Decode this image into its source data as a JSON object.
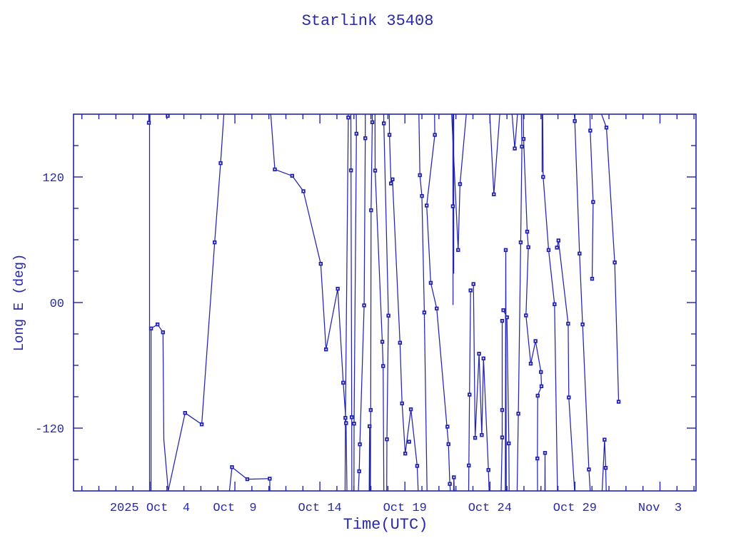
{
  "title": "Starlink 35408",
  "colors": {
    "plot": "#2323b0",
    "text": "#2828a8",
    "background": "#ffffff"
  },
  "chart_data": {
    "type": "line",
    "title": "Starlink 35408",
    "xlabel": "Time(UTC)",
    "ylabel": "Long E (deg)",
    "x_unit": "day of October 2025 (day 34 = Nov 3)",
    "xlim": [
      -0.49,
      36.12
    ],
    "ylim": [
      -180,
      180
    ],
    "grid": false,
    "legend": null,
    "x_major_ticks": [
      {
        "day": 4,
        "label": "2025 Oct  4"
      },
      {
        "day": 9,
        "label": "Oct  9"
      },
      {
        "day": 14,
        "label": "Oct 14"
      },
      {
        "day": 19,
        "label": "Oct 19"
      },
      {
        "day": 24,
        "label": "Oct 24"
      },
      {
        "day": 29,
        "label": "Oct 29"
      },
      {
        "day": 34,
        "label": "Nov  3"
      }
    ],
    "x_minor_ticks": {
      "start": 0,
      "end": 36,
      "step": 1
    },
    "y_major_ticks": [
      {
        "value": 120,
        "label": "120"
      },
      {
        "value": 0,
        "label": "00"
      },
      {
        "value": -120,
        "label": "-120"
      }
    ],
    "y_minor_step": 30,
    "lines": [
      [
        [
          3.94,
          180
        ],
        [
          3.94,
          171.8
        ]
      ],
      [
        [
          3.98,
          180
        ],
        [
          3.98,
          -180
        ]
      ],
      [
        [
          4.07,
          -180
        ],
        [
          4.07,
          -24.8
        ],
        [
          4.45,
          -20.9
        ],
        [
          4.77,
          -28.4
        ],
        [
          4.82,
          -131
        ],
        [
          5.08,
          -180
        ],
        [
          6.07,
          -105.5
        ],
        [
          7.05,
          -116.4
        ],
        [
          7.81,
          57.5
        ],
        [
          8.16,
          133.2
        ],
        [
          8.35,
          180
        ]
      ],
      [
        [
          8.68,
          -180
        ],
        [
          8.83,
          -157.3
        ],
        [
          9.73,
          -168.8
        ],
        [
          11.05,
          -168.3
        ],
        [
          11.06,
          -180
        ]
      ],
      [
        [
          11.11,
          180
        ],
        [
          11.35,
          127.2
        ],
        [
          12.37,
          121.1
        ],
        [
          13.03,
          106.4
        ],
        [
          14.05,
          37
        ],
        [
          14.36,
          -44.8
        ],
        [
          15.05,
          13.2
        ],
        [
          15.37,
          -76.6
        ],
        [
          15.54,
          -115.2
        ],
        [
          15.59,
          -180
        ]
      ],
      [
        [
          15.66,
          180
        ],
        [
          15.67,
          176.8
        ],
        [
          15.5,
          -110.2
        ],
        [
          15.48,
          -180
        ]
      ],
      [
        [
          15.82,
          180
        ],
        [
          15.83,
          126.3
        ],
        [
          15.87,
          -109.6
        ],
        [
          15.88,
          -180
        ]
      ],
      [
        [
          16.14,
          180
        ],
        [
          16.15,
          161.3
        ],
        [
          16.01,
          -115.7
        ],
        [
          16.0,
          -180
        ]
      ],
      [
        [
          16.67,
          180
        ],
        [
          16.67,
          157
        ],
        [
          16.6,
          -2.7
        ],
        [
          16.35,
          -135.5
        ],
        [
          16.31,
          -161.2
        ],
        [
          16.26,
          -180
        ]
      ],
      [
        [
          16.9,
          -180
        ],
        [
          16.92,
          -118.2
        ],
        [
          16.94,
          -180
        ]
      ],
      [
        [
          17.08,
          180
        ],
        [
          17.08,
          172.3
        ],
        [
          17.01,
          88.2
        ],
        [
          16.99,
          -102.7
        ],
        [
          16.97,
          -180
        ]
      ],
      [
        [
          17.24,
          180
        ],
        [
          17.25,
          126.1
        ],
        [
          17.67,
          -37.5
        ],
        [
          17.72,
          -60.7
        ],
        [
          17.76,
          -180
        ]
      ],
      [
        [
          17.75,
          180
        ],
        [
          17.76,
          171.2
        ],
        [
          18.03,
          -12.5
        ],
        [
          17.94,
          -130.7
        ],
        [
          17.93,
          -180
        ]
      ],
      [
        [
          18.08,
          180
        ],
        [
          18.09,
          160.2
        ],
        [
          18.18,
          113.8
        ],
        [
          18.27,
          117.7
        ],
        [
          18.71,
          -38.4
        ],
        [
          18.83,
          -96.4
        ],
        [
          19.02,
          -144.3
        ],
        [
          19.35,
          -102
        ],
        [
          19.72,
          -156.1
        ],
        [
          19.78,
          -180
        ]
      ],
      [
        [
          19.82,
          180
        ],
        [
          19.88,
          121.7
        ],
        [
          20,
          101.8
        ],
        [
          20.14,
          -9.5
        ],
        [
          20.3,
          -180
        ]
      ],
      [
        [
          20.74,
          180
        ],
        [
          20.76,
          160.2
        ],
        [
          20.28,
          92.7
        ],
        [
          20.52,
          18.8
        ],
        [
          20.87,
          -5.7
        ],
        [
          21.56,
          -135.3
        ],
        [
          21.64,
          -173.3
        ],
        [
          21.67,
          -180
        ]
      ],
      [
        [
          21.86,
          -180
        ],
        [
          21.88,
          -167
        ],
        [
          21.9,
          -180
        ]
      ],
      [
        [
          21.82,
          180
        ],
        [
          21.83,
          -2
        ]
      ],
      [
        [
          21.87,
          180
        ],
        [
          21.87,
          28
        ]
      ],
      [
        [
          21.75,
          180
        ],
        [
          22.13,
          50.2
        ],
        [
          22.24,
          113.2
        ],
        [
          22.61,
          180
        ]
      ],
      [
        [
          22.86,
          11.6
        ],
        [
          22.8,
          -88
        ],
        [
          22.76,
          -155.7
        ],
        [
          22.75,
          -180
        ]
      ],
      [
        [
          23.03,
          17.7
        ],
        [
          23.13,
          -129.3
        ],
        [
          23.36,
          -48.9
        ],
        [
          23.52,
          -126.6
        ],
        [
          23.62,
          -53.4
        ],
        [
          23.91,
          -160
        ],
        [
          23.95,
          -180
        ]
      ],
      [
        [
          23.99,
          180
        ],
        [
          24.23,
          103.4
        ],
        [
          24.58,
          180
        ]
      ],
      [
        [
          24.72,
          -17.5
        ],
        [
          24.72,
          -102.7
        ],
        [
          24.72,
          -128.9
        ],
        [
          24.66,
          -180
        ]
      ],
      [
        [
          24.9,
          -180
        ],
        [
          24.93,
          50.2
        ],
        [
          24.96,
          -180
        ]
      ],
      [
        [
          24.79,
          -7.3
        ],
        [
          25,
          -14.1
        ],
        [
          25.11,
          -134.6
        ],
        [
          25.13,
          -180
        ]
      ],
      [
        [
          25.3,
          180
        ],
        [
          25.46,
          147.2
        ],
        [
          25.62,
          180
        ]
      ],
      [
        [
          25.85,
          180
        ],
        [
          25.88,
          149
        ],
        [
          25.81,
          57.5
        ],
        [
          25.67,
          -106.2
        ],
        [
          25.6,
          -180
        ]
      ],
      [
        [
          25.96,
          180
        ],
        [
          25.98,
          156.3
        ],
        [
          26.19,
          67.7
        ],
        [
          26.26,
          52.9
        ],
        [
          26.12,
          -12.3
        ],
        [
          26.4,
          -58.4
        ],
        [
          26.68,
          -36.8
        ],
        [
          27,
          -66.4
        ],
        [
          27.03,
          -80
        ],
        [
          26.81,
          -89
        ],
        [
          26.79,
          -149
        ],
        [
          26.8,
          -180
        ]
      ],
      [
        [
          27.23,
          -180
        ],
        [
          27.24,
          -143.7
        ],
        [
          27.25,
          -180
        ]
      ],
      [
        [
          27.1,
          180
        ],
        [
          27.13,
          120
        ],
        [
          27.45,
          50.2
        ],
        [
          27.8,
          -1.6
        ],
        [
          27.97,
          -180
        ]
      ],
      [
        [
          27.07,
          180
        ],
        [
          27.07,
          125
        ]
      ],
      [
        [
          27.94,
          52.5
        ],
        [
          28.03,
          59.3
        ],
        [
          28.6,
          -20.2
        ],
        [
          28.64,
          -90.7
        ],
        [
          28.98,
          -180
        ]
      ],
      [
        [
          28.96,
          180
        ],
        [
          28.99,
          173.4
        ],
        [
          29.27,
          46.8
        ],
        [
          29.45,
          -20.9
        ],
        [
          29.82,
          -159.5
        ],
        [
          29.9,
          -180
        ]
      ],
      [
        [
          29.88,
          180
        ],
        [
          29.9,
          164.3
        ],
        [
          30.07,
          96.1
        ],
        [
          30.01,
          22.7
        ]
      ],
      [
        [
          30.56,
          180
        ],
        [
          30.85,
          167.2
        ],
        [
          31.34,
          38.3
        ],
        [
          31.57,
          -94.8
        ]
      ],
      [
        [
          30.6,
          -180
        ],
        [
          30.74,
          -131
        ],
        [
          30.81,
          -158
        ],
        [
          30.84,
          -180
        ]
      ]
    ],
    "markers": [
      [
        3.94,
        171.8
      ],
      [
        5.05,
        178.4
      ],
      [
        4.07,
        -24.8
      ],
      [
        4.45,
        -20.9
      ],
      [
        4.77,
        -28.4
      ],
      [
        6.07,
        -105.5
      ],
      [
        7.05,
        -116.4
      ],
      [
        7.81,
        57.5
      ],
      [
        8.16,
        133.2
      ],
      [
        8.83,
        -157.3
      ],
      [
        9.73,
        -168.8
      ],
      [
        11.05,
        -168.3
      ],
      [
        11.35,
        127.2
      ],
      [
        12.37,
        121.1
      ],
      [
        13.03,
        106.4
      ],
      [
        14.05,
        37
      ],
      [
        14.36,
        -44.8
      ],
      [
        15.05,
        13.2
      ],
      [
        15.37,
        -76.6
      ],
      [
        15.54,
        -115.2
      ],
      [
        15.67,
        176.8
      ],
      [
        15.5,
        -110.2
      ],
      [
        15.83,
        126.3
      ],
      [
        15.87,
        -109.6
      ],
      [
        16.15,
        161.3
      ],
      [
        16.01,
        -115.7
      ],
      [
        16.67,
        157
      ],
      [
        16.6,
        -2.7
      ],
      [
        16.35,
        -135.5
      ],
      [
        16.31,
        -161.2
      ],
      [
        16.92,
        -118.2
      ],
      [
        17.08,
        172.3
      ],
      [
        17.01,
        88.2
      ],
      [
        16.99,
        -102.7
      ],
      [
        17.25,
        126.1
      ],
      [
        17.67,
        -37.5
      ],
      [
        17.72,
        -60.7
      ],
      [
        17.76,
        171.2
      ],
      [
        18.03,
        -12.5
      ],
      [
        17.94,
        -130.7
      ],
      [
        18.09,
        160.2
      ],
      [
        18.18,
        113.8
      ],
      [
        18.27,
        117.7
      ],
      [
        18.71,
        -38.4
      ],
      [
        18.83,
        -96.4
      ],
      [
        19.02,
        -144.3
      ],
      [
        19.35,
        -102
      ],
      [
        19.25,
        -133
      ],
      [
        19.72,
        -156.1
      ],
      [
        19.88,
        121.7
      ],
      [
        20,
        101.8
      ],
      [
        20.14,
        -9.5
      ],
      [
        20.76,
        160.2
      ],
      [
        20.28,
        92.7
      ],
      [
        20.52,
        18.8
      ],
      [
        20.87,
        -5.7
      ],
      [
        21.5,
        -118.6
      ],
      [
        21.56,
        -135.3
      ],
      [
        21.64,
        -173.3
      ],
      [
        21.88,
        -167
      ],
      [
        21.82,
        92
      ],
      [
        22.13,
        50.2
      ],
      [
        22.24,
        113.2
      ],
      [
        22.86,
        11.6
      ],
      [
        22.8,
        -88
      ],
      [
        22.76,
        -155.7
      ],
      [
        23.03,
        17.7
      ],
      [
        23.13,
        -129.3
      ],
      [
        23.36,
        -48.9
      ],
      [
        23.52,
        -126.6
      ],
      [
        23.62,
        -53.4
      ],
      [
        23.91,
        -160
      ],
      [
        24.23,
        103.4
      ],
      [
        24.72,
        -17.5
      ],
      [
        24.72,
        -102.7
      ],
      [
        24.72,
        -128.9
      ],
      [
        24.79,
        -7.3
      ],
      [
        25,
        -14.1
      ],
      [
        25.11,
        -134.6
      ],
      [
        24.93,
        50.2
      ],
      [
        25.46,
        147.2
      ],
      [
        25.88,
        149
      ],
      [
        25.81,
        57.5
      ],
      [
        25.67,
        -106.2
      ],
      [
        25.98,
        156.3
      ],
      [
        26.19,
        67.7
      ],
      [
        26.26,
        52.9
      ],
      [
        26.12,
        -12.3
      ],
      [
        26.4,
        -58.4
      ],
      [
        26.68,
        -36.8
      ],
      [
        27,
        -66.4
      ],
      [
        27.03,
        -80
      ],
      [
        26.81,
        -89
      ],
      [
        26.79,
        -149
      ],
      [
        27.24,
        -143.7
      ],
      [
        27.13,
        120
      ],
      [
        27.45,
        50.2
      ],
      [
        27.8,
        -1.6
      ],
      [
        27.94,
        52.5
      ],
      [
        28.03,
        59.3
      ],
      [
        28.6,
        -20.2
      ],
      [
        28.64,
        -90.7
      ],
      [
        28.99,
        173.4
      ],
      [
        29.27,
        46.8
      ],
      [
        29.45,
        -20.9
      ],
      [
        29.82,
        -159.5
      ],
      [
        29.9,
        164.3
      ],
      [
        30.07,
        96.1
      ],
      [
        30.01,
        22.7
      ],
      [
        30.85,
        167.2
      ],
      [
        31.34,
        38.3
      ],
      [
        31.57,
        -94.8
      ],
      [
        30.74,
        -131
      ],
      [
        30.81,
        -158
      ]
    ]
  }
}
